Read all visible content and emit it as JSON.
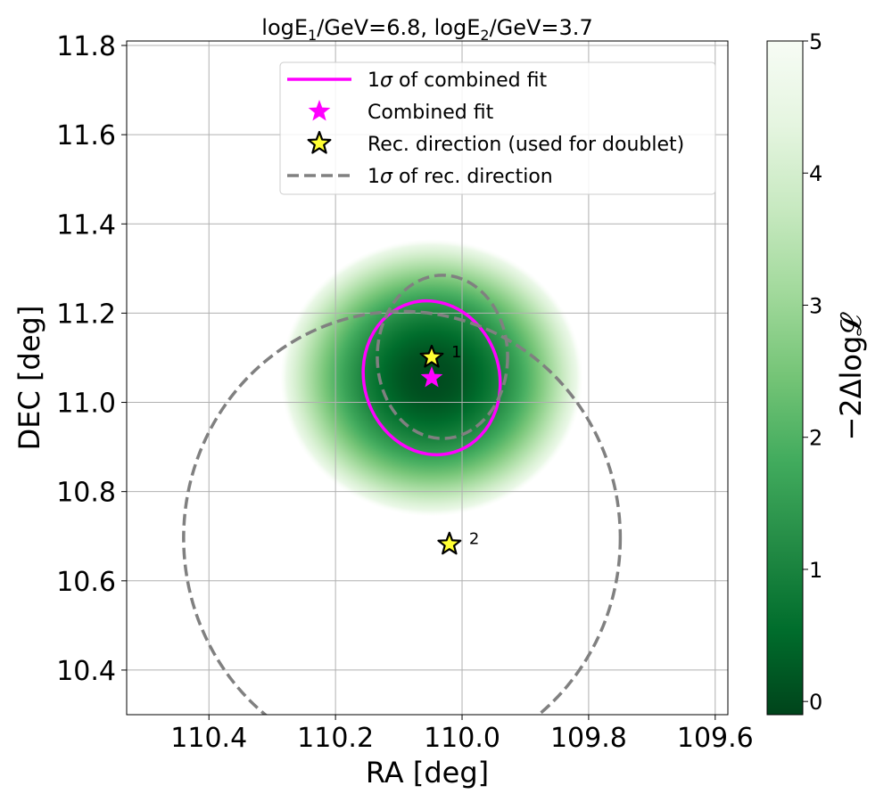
{
  "chart_data": {
    "type": "heatmap",
    "title": {
      "parts": [
        {
          "text": "logE",
          "baseline": "normal"
        },
        {
          "text": "1",
          "baseline": "sub"
        },
        {
          "text": "/GeV=6.8, logE",
          "baseline": "normal"
        },
        {
          "text": "2",
          "baseline": "sub"
        },
        {
          "text": "/GeV=3.7",
          "baseline": "normal"
        }
      ]
    },
    "xlabel": "RA [deg]",
    "ylabel": "DEC [deg]",
    "x_axis_inverted": true,
    "xlim": [
      110.53,
      109.58
    ],
    "ylim": [
      10.3,
      11.81
    ],
    "grid": true,
    "x_ticks": [
      110.4,
      110.2,
      110.0,
      109.8,
      109.6
    ],
    "x_tick_labels": [
      "110.4",
      "110.2",
      "110.0",
      "109.8",
      "109.6"
    ],
    "y_ticks": [
      10.4,
      10.6,
      10.8,
      11.0,
      11.2,
      11.4,
      11.6,
      11.8
    ],
    "y_tick_labels": [
      "10.4",
      "10.6",
      "10.8",
      "11.0",
      "11.2",
      "11.4",
      "11.6",
      "11.8"
    ],
    "heatmap": {
      "center": {
        "ra": 110.048,
        "dec": 11.055
      },
      "sigma_ra": 0.107,
      "sigma_dec": 0.139,
      "cmap": "Greens_r",
      "cutoff": 5
    },
    "colorbar": {
      "label": "−2Δlog𝓛",
      "vmin": -0.1,
      "vmax": 5,
      "ticks": [
        0,
        1,
        2,
        3,
        4,
        5
      ],
      "tick_labels": [
        "0",
        "1",
        "2",
        "3",
        "4",
        "5"
      ],
      "colors": [
        "#00441b",
        "#006d2c",
        "#238b45",
        "#41ab5d",
        "#74c476",
        "#a1d99b",
        "#c7e9c0",
        "#e5f5e0",
        "#f7fcf5"
      ]
    },
    "series": [
      {
        "name": "1σ of combined fit",
        "kind": "ellipse",
        "center": {
          "ra": 110.048,
          "dec": 11.055
        },
        "semi_ra": 0.107,
        "semi_dec": 0.174,
        "color": "#ff00ff",
        "style": "solid"
      },
      {
        "name": "Combined fit",
        "kind": "star",
        "ra": 110.048,
        "dec": 11.055,
        "color": "#ff00ff"
      },
      {
        "name": "Rec. direction (used for doublet)",
        "kind": "star",
        "color": "#ffff33",
        "edge_color": "#000000",
        "points": [
          {
            "label": "1",
            "ra": 110.048,
            "dec": 11.101
          },
          {
            "label": "2",
            "ra": 110.02,
            "dec": 10.682
          }
        ]
      },
      {
        "name": "1σ of rec. direction",
        "kind": "ellipses",
        "color": "#808080",
        "style": "dashed",
        "items": [
          {
            "center": {
              "ra": 110.031,
              "dec": 11.102
            },
            "semi_ra": 0.103,
            "semi_dec": 0.183
          },
          {
            "center": {
              "ra": 110.095,
              "dec": 10.696
            },
            "semi_ra": 0.345,
            "semi_dec": 0.508
          }
        ]
      }
    ],
    "legend": {
      "position": "top-center",
      "entries": [
        {
          "prefix": "1",
          "greek": "σ",
          "text": " of combined fit",
          "symbol": "line",
          "color": "#ff00ff"
        },
        {
          "prefix": "",
          "greek": "",
          "text": "Combined fit",
          "symbol": "star",
          "color": "#ff00ff"
        },
        {
          "prefix": "",
          "greek": "",
          "text": "Rec. direction (used for doublet)",
          "symbol": "star-outlined",
          "color": "#ffff33"
        },
        {
          "prefix": "1",
          "greek": "σ",
          "text": " of rec. direction",
          "symbol": "dashed-line",
          "color": "#808080"
        }
      ]
    }
  }
}
